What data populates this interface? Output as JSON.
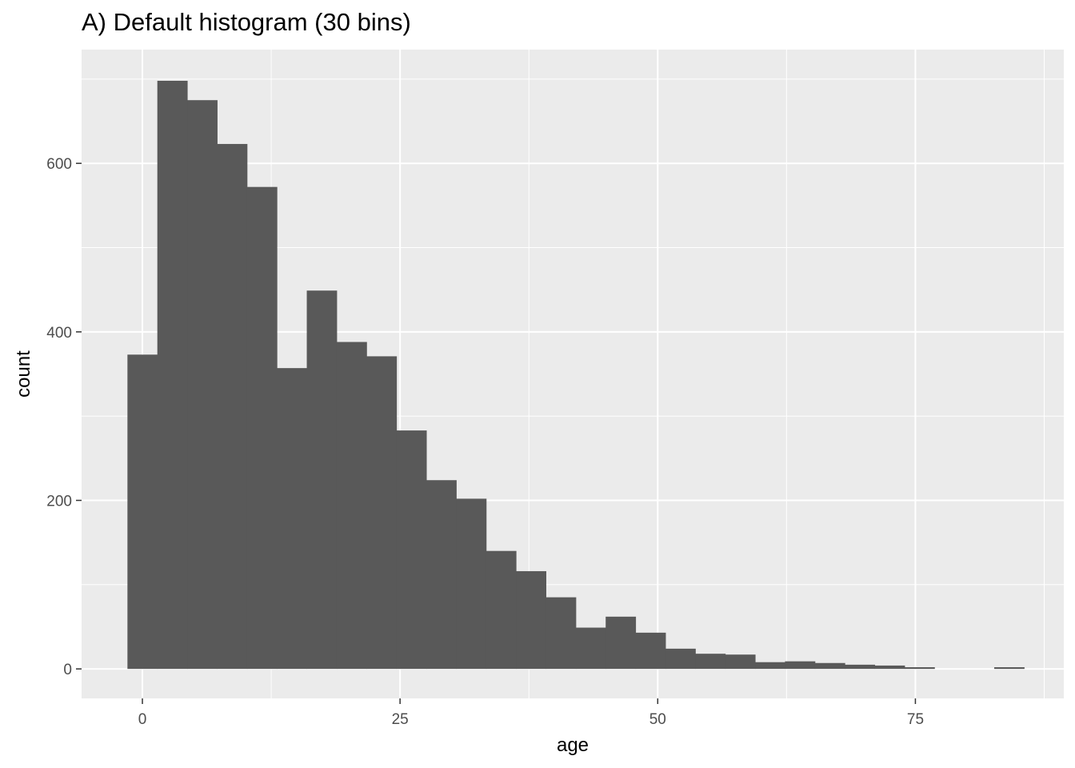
{
  "chart_data": {
    "type": "bar",
    "title": "A) Default histogram (30 bins)",
    "xlabel": "age",
    "ylabel": "count",
    "xlim": [
      -5.9,
      89.4
    ],
    "ylim": [
      -35,
      735
    ],
    "x_ticks": [
      0,
      25,
      50,
      75
    ],
    "x_tick_labels": [
      "0",
      "25",
      "50",
      "75"
    ],
    "y_ticks": [
      0,
      200,
      400,
      600
    ],
    "y_tick_labels": [
      "0",
      "200",
      "400",
      "600"
    ],
    "grid": true,
    "bin_width": 2.9,
    "bins": [
      {
        "x0": -1.45,
        "count": 373
      },
      {
        "x0": 1.45,
        "count": 698
      },
      {
        "x0": 4.35,
        "count": 675
      },
      {
        "x0": 7.25,
        "count": 623
      },
      {
        "x0": 10.15,
        "count": 572
      },
      {
        "x0": 13.05,
        "count": 357
      },
      {
        "x0": 15.95,
        "count": 449
      },
      {
        "x0": 18.85,
        "count": 388
      },
      {
        "x0": 21.75,
        "count": 371
      },
      {
        "x0": 24.65,
        "count": 283
      },
      {
        "x0": 27.55,
        "count": 224
      },
      {
        "x0": 30.45,
        "count": 202
      },
      {
        "x0": 33.35,
        "count": 140
      },
      {
        "x0": 36.25,
        "count": 116
      },
      {
        "x0": 39.15,
        "count": 85
      },
      {
        "x0": 42.05,
        "count": 49
      },
      {
        "x0": 44.95,
        "count": 62
      },
      {
        "x0": 47.85,
        "count": 43
      },
      {
        "x0": 50.75,
        "count": 24
      },
      {
        "x0": 53.65,
        "count": 18
      },
      {
        "x0": 56.55,
        "count": 17
      },
      {
        "x0": 59.45,
        "count": 8
      },
      {
        "x0": 62.35,
        "count": 9
      },
      {
        "x0": 65.25,
        "count": 7
      },
      {
        "x0": 68.15,
        "count": 5
      },
      {
        "x0": 71.05,
        "count": 4
      },
      {
        "x0": 73.95,
        "count": 2
      },
      {
        "x0": 76.85,
        "count": 0
      },
      {
        "x0": 79.75,
        "count": 0
      },
      {
        "x0": 82.65,
        "count": 2
      }
    ],
    "colors": {
      "panel": "#ebebeb",
      "grid_major": "#ffffff",
      "bar": "#595959",
      "tick": "#333333"
    }
  }
}
